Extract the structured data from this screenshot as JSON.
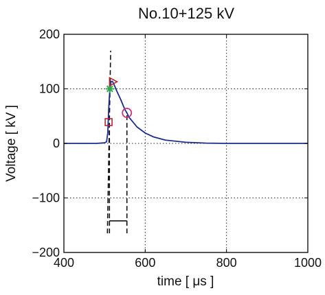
{
  "chart_data": {
    "type": "line",
    "title": "No.10+125 kV",
    "xlabel": "time [ μs ]",
    "ylabel": "Voltage [ kV ]",
    "xlim": [
      400,
      1000
    ],
    "ylim": [
      -200,
      200
    ],
    "x_ticks": [
      400,
      600,
      800,
      1000
    ],
    "y_ticks": [
      -200,
      -100,
      0,
      100,
      200
    ],
    "x_tick_labels": [
      "400",
      "600",
      "800",
      "1000"
    ],
    "y_tick_labels": [
      "−200",
      "−100",
      "0",
      "100",
      "200"
    ],
    "grid": true,
    "series": [
      {
        "color": "#1a2a8c",
        "x": [
          400,
          480,
          500,
          505,
          508,
          510,
          513,
          516,
          518,
          520,
          525,
          530,
          540,
          550,
          555,
          560,
          580,
          600,
          620,
          650,
          700,
          750,
          800,
          900,
          1000
        ],
        "y": [
          0,
          0,
          1,
          3,
          20,
          60,
          100,
          113,
          114,
          113,
          105,
          96,
          80,
          62,
          56,
          48,
          30,
          19,
          12,
          6,
          2,
          0.5,
          0,
          0,
          0
        ]
      }
    ],
    "markers": [
      {
        "shape": "square",
        "x": 510,
        "y": 39,
        "color": "#b8232c"
      },
      {
        "shape": "star",
        "x": 513,
        "y": 100,
        "color": "#2ea84a"
      },
      {
        "shape": "triangle-right",
        "x": 519,
        "y": 113,
        "color": "#b8232c"
      },
      {
        "shape": "circle",
        "x": 555,
        "y": 56,
        "color": "#cc2f7a"
      }
    ],
    "dashed_lines": [
      {
        "x": [
          507,
          515
        ],
        "y": [
          -165,
          170
        ]
      },
      {
        "x": [
          512,
          512
        ],
        "y": [
          -165,
          38
        ]
      },
      {
        "x": [
          555,
          555
        ],
        "y": [
          -165,
          54
        ]
      }
    ],
    "bracket": {
      "x": [
        512,
        555
      ],
      "y": -142
    }
  }
}
